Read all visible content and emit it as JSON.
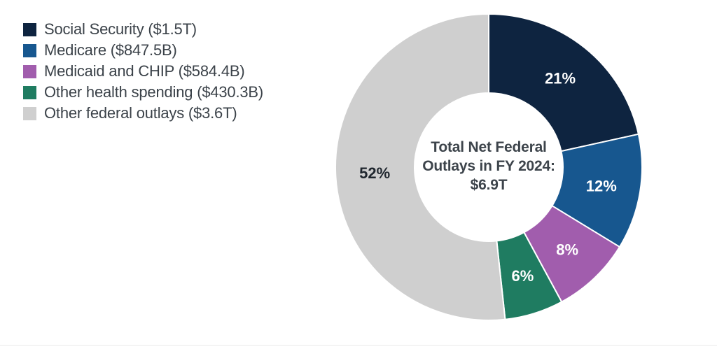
{
  "chart_data": {
    "type": "pie",
    "subtype": "donut",
    "legend_position": "top-left",
    "start_angle_deg": 0,
    "direction": "clockwise",
    "center_label": {
      "line1": "Total Net Federal",
      "line2": "Outlays in FY 2024:",
      "line3": "$6.9T"
    },
    "segments": [
      {
        "name": "Social Security",
        "legend_label": "Social Security ($1.5T)",
        "amount": "$1.5T",
        "value_billions": 1500,
        "percent_label": "21%",
        "color": "#0e2440",
        "percent_label_color": "#ffffff"
      },
      {
        "name": "Medicare",
        "legend_label": "Medicare ($847.5B)",
        "amount": "$847.5B",
        "value_billions": 847.5,
        "percent_label": "12%",
        "color": "#17578f",
        "percent_label_color": "#ffffff"
      },
      {
        "name": "Medicaid and CHIP",
        "legend_label": "Medicaid and CHIP ($584.4B)",
        "amount": "$584.4B",
        "value_billions": 584.4,
        "percent_label": "8%",
        "color": "#a15dad",
        "percent_label_color": "#ffffff"
      },
      {
        "name": "Other health spending",
        "legend_label": "Other health spending ($430.3B)",
        "amount": "$430.3B",
        "value_billions": 430.3,
        "percent_label": "6%",
        "color": "#1f7c61",
        "percent_label_color": "#ffffff"
      },
      {
        "name": "Other federal outlays",
        "legend_label": "Other federal outlays ($3.6T)",
        "amount": "$3.6T",
        "value_billions": 3600,
        "percent_label": "52%",
        "color": "#cfcfcf",
        "percent_label_color": "#1f262e"
      }
    ]
  }
}
